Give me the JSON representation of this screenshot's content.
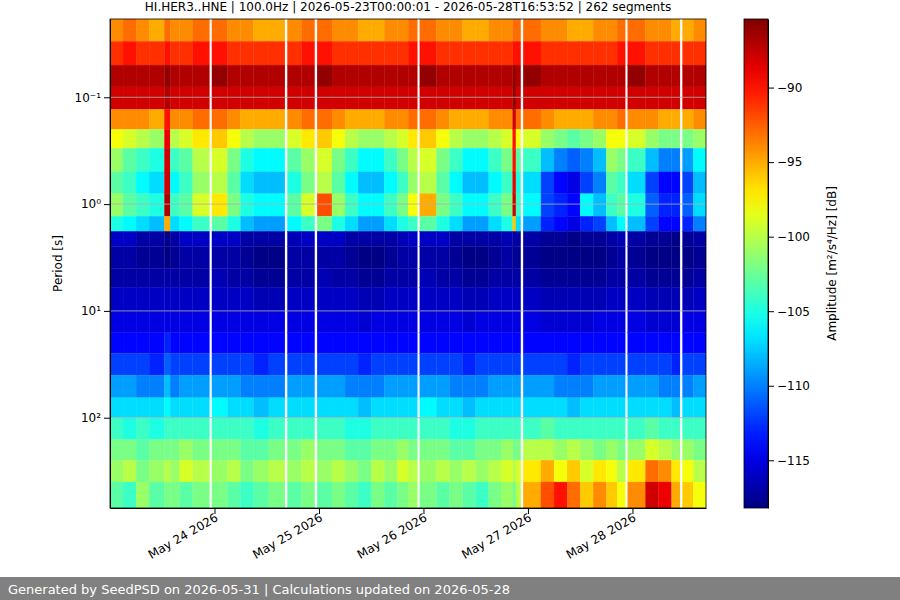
{
  "chart_data": {
    "type": "heatmap",
    "title": "HI.HER3..HNE | 100.0Hz | 2026-05-23T00:00:01 - 2026-05-28T16:53:52 | 262 segments",
    "y_label": "Period [s]",
    "footer": "Generated by SeedPSD on 2026-05-31 | Calculations updated on 2026-05-28",
    "log": "y",
    "grid": true,
    "xlim": [
      "2026-05-23T00:00:00Z",
      "2026-05-28T16:53:52Z"
    ],
    "ylim": [
      0.0185,
      700
    ],
    "xticks": [
      {
        "value": "2026-05-24T00:00:00Z",
        "label": "May 24 2026"
      },
      {
        "value": "2026-05-25T00:00:00Z",
        "label": "May 25 2026"
      },
      {
        "value": "2026-05-26T00:00:00Z",
        "label": "May 26 2026"
      },
      {
        "value": "2026-05-27T00:00:00Z",
        "label": "May 27 2026"
      },
      {
        "value": "2026-05-28T00:00:00Z",
        "label": "May 28 2026"
      }
    ],
    "yticks": [
      {
        "value": 0.1,
        "label": "10⁻¹"
      },
      {
        "value": 1,
        "label": "10⁰"
      },
      {
        "value": 10,
        "label": "10¹"
      },
      {
        "value": 100,
        "label": "10²"
      }
    ],
    "colorbar": {
      "label": "Amplitude [m²/s⁴/Hz] [dB]",
      "range": [
        -118.2,
        -85.4
      ],
      "ticks": [
        {
          "value": -90,
          "label": "−90"
        },
        {
          "value": -95,
          "label": "−95"
        },
        {
          "value": -100,
          "label": "−100"
        },
        {
          "value": -105,
          "label": "−105"
        },
        {
          "value": -110,
          "label": "−110"
        },
        {
          "value": -115,
          "label": "−115"
        }
      ]
    },
    "x_edges": [
      "2026-05-23T00:00:00Z",
      "2026-05-23T03:00:00Z",
      "2026-05-23T06:00:00Z",
      "2026-05-23T09:00:00Z",
      "2026-05-23T12:30:00Z",
      "2026-05-23T13:50:00Z",
      "2026-05-23T16:00:00Z",
      "2026-05-23T19:00:00Z",
      "2026-05-23T22:50:00Z",
      "2026-05-23T23:25:00Z",
      "2026-05-24T03:00:00Z",
      "2026-05-24T06:00:00Z",
      "2026-05-24T09:00:00Z",
      "2026-05-24T12:30:00Z",
      "2026-05-24T16:10:00Z",
      "2026-05-24T16:45:00Z",
      "2026-05-24T20:00:00Z",
      "2026-05-24T23:00:00Z",
      "2026-05-24T23:35:00Z",
      "2026-05-25T03:00:00Z",
      "2026-05-25T06:00:00Z",
      "2026-05-25T09:00:00Z",
      "2026-05-25T12:00:00Z",
      "2026-05-25T15:00:00Z",
      "2026-05-25T18:00:00Z",
      "2026-05-25T20:30:00Z",
      "2026-05-25T22:35:00Z",
      "2026-05-25T23:10:00Z",
      "2026-05-26T03:00:00Z",
      "2026-05-26T06:00:00Z",
      "2026-05-26T09:00:00Z",
      "2026-05-26T12:00:00Z",
      "2026-05-26T15:00:00Z",
      "2026-05-26T18:00:00Z",
      "2026-05-26T20:30:00Z",
      "2026-05-26T21:15:00Z",
      "2026-05-26T22:20:00Z",
      "2026-05-26T22:55:00Z",
      "2026-05-27T03:00:00Z",
      "2026-05-27T06:00:00Z",
      "2026-05-27T09:00:00Z",
      "2026-05-27T12:00:00Z",
      "2026-05-27T15:00:00Z",
      "2026-05-27T18:00:00Z",
      "2026-05-27T20:30:00Z",
      "2026-05-27T22:20:00Z",
      "2026-05-27T22:55:00Z",
      "2026-05-28T03:00:00Z",
      "2026-05-28T06:00:00Z",
      "2026-05-28T09:00:00Z",
      "2026-05-28T10:55:00Z",
      "2026-05-28T11:30:00Z",
      "2026-05-28T14:00:00Z",
      "2026-05-28T16:53:52Z"
    ],
    "y_edges": [
      0.0185,
      0.03,
      0.05,
      0.08,
      0.13,
      0.2,
      0.3,
      0.5,
      0.8,
      1.3,
      1.8,
      2.5,
      4,
      6,
      10,
      16,
      25,
      40,
      65,
      100,
      160,
      250,
      400,
      700
    ],
    "z": [
      [
        -94,
        -91,
        -87,
        -88,
        -94,
        -98,
        -101,
        -103,
        -101,
        -105,
        -116,
        -117,
        -117,
        -116,
        -115,
        -114,
        -112,
        -109,
        -107,
        -104,
        -102,
        -101,
        -103
      ],
      [
        -93,
        -90,
        -87,
        -88,
        -94,
        -99,
        -103,
        -104,
        -103,
        -106,
        -116,
        -117,
        -117,
        -116,
        -115,
        -114,
        -112,
        -109,
        -107,
        -105,
        -102,
        -100,
        -104
      ],
      [
        -94,
        -91,
        -87,
        -88,
        -94,
        -100,
        -104,
        -106,
        -104,
        -107,
        -117,
        -117.5,
        -117,
        -116,
        -115,
        -114,
        -112,
        -110,
        -107,
        -104,
        -103,
        -102,
        -101
      ],
      [
        -95,
        -91,
        -87,
        -88,
        -95,
        -101,
        -105,
        -107,
        -105,
        -108,
        -117,
        -117.5,
        -117,
        -116,
        -115,
        -114,
        -113,
        -110,
        -107,
        -105,
        -102,
        -101,
        -103
      ],
      [
        -93,
        -90,
        -86,
        -87,
        -90,
        -89,
        -88,
        -88,
        -87,
        -95,
        -118,
        -118,
        -117,
        -116,
        -115,
        -113,
        -111,
        -108,
        -106,
        -104,
        -102,
        -100,
        -102
      ],
      [
        -94,
        -91,
        -87,
        -88,
        -94,
        -100,
        -104,
        -106,
        -104,
        -107,
        -117,
        -117.5,
        -117,
        -116,
        -115,
        -114,
        -112,
        -110,
        -107,
        -104,
        -102,
        -101,
        -102
      ],
      [
        -94,
        -91,
        -87,
        -88,
        -94,
        -99,
        -103,
        -104,
        -103,
        -106,
        -116,
        -117,
        -117,
        -116,
        -115,
        -114,
        -112,
        -109,
        -107,
        -104,
        -101,
        -99,
        -103
      ],
      [
        -93,
        -90,
        -87,
        -88,
        -93,
        -97,
        -100,
        -101,
        -99,
        -104,
        -116,
        -117,
        -117,
        -116,
        -115,
        -114,
        -112,
        -109,
        -107,
        -104,
        -102,
        -100,
        -102
      ],
      null,
      [
        -93,
        -90,
        -86,
        -88,
        -93,
        -96,
        -99,
        -100,
        -97,
        -103,
        -116,
        -117,
        -116.5,
        -116,
        -115,
        -114,
        -112,
        -109,
        -106,
        -104,
        -102,
        -101,
        -102
      ],
      [
        -94,
        -91,
        -87,
        -88,
        -94,
        -98,
        -102,
        -103,
        -102,
        -105,
        -116,
        -117,
        -117,
        -116,
        -115,
        -114,
        -112,
        -109,
        -107,
        -104,
        -102,
        -100,
        -103
      ],
      [
        -94,
        -91,
        -87,
        -88,
        -95,
        -100,
        -105,
        -107,
        -105,
        -108,
        -117,
        -117.5,
        -117,
        -116,
        -115,
        -114,
        -112,
        -110,
        -107,
        -104,
        -103,
        -102,
        -104
      ],
      [
        -95,
        -91,
        -87,
        -88,
        -95,
        -101,
        -106,
        -108,
        -106,
        -109,
        -117,
        -118,
        -117.5,
        -116.5,
        -115,
        -114,
        -113,
        -110,
        -108,
        -105,
        -103,
        -101,
        -103
      ],
      [
        -95,
        -91,
        -87,
        -88,
        -95,
        -101,
        -106,
        -108,
        -106,
        -109,
        -117,
        -118,
        -117.5,
        -116.5,
        -115,
        -114,
        -112,
        -110,
        -107,
        -104,
        -102,
        -100,
        -102
      ],
      null,
      [
        -94,
        -91,
        -87,
        -88,
        -94,
        -99,
        -103,
        -105,
        -103,
        -106,
        -116.5,
        -117,
        -117,
        -116,
        -115,
        -114,
        -112,
        -109,
        -107,
        -104,
        -102,
        -101,
        -103
      ],
      [
        -93,
        -90,
        -87,
        -88,
        -93,
        -97,
        -101,
        -102,
        -99,
        -104,
        -116,
        -117,
        -117,
        -116,
        -115,
        -114,
        -112,
        -109,
        -107,
        -104,
        -101,
        -100,
        -102
      ],
      null,
      [
        -93,
        -90,
        -86,
        -88,
        -93,
        -96,
        -99,
        -100,
        -92,
        -102,
        -116,
        -117,
        -116.5,
        -116,
        -115,
        -114,
        -112,
        -109,
        -107,
        -104,
        -102,
        -101,
        -103
      ],
      [
        -94,
        -91,
        -87,
        -88,
        -94,
        -98,
        -102,
        -103,
        -101,
        -105,
        -116,
        -117,
        -117,
        -116,
        -115,
        -114,
        -112,
        -109,
        -107,
        -104,
        -102,
        -100,
        -102
      ],
      [
        -94,
        -91,
        -87,
        -88,
        -95,
        -100,
        -104,
        -106,
        -104,
        -107,
        -117,
        -117.5,
        -117,
        -116,
        -115,
        -114,
        -112,
        -110,
        -107,
        -105,
        -103,
        -101,
        -103
      ],
      [
        -95,
        -91,
        -87,
        -88,
        -95,
        -101,
        -106,
        -108,
        -106,
        -109,
        -117,
        -118,
        -117.5,
        -116.5,
        -115.5,
        -114,
        -113,
        -110,
        -108,
        -105,
        -103,
        -102,
        -104
      ],
      [
        -95,
        -91,
        -87,
        -88,
        -95,
        -101,
        -106,
        -108,
        -106,
        -109,
        -117,
        -118,
        -117.5,
        -116.5,
        -115,
        -114,
        -112,
        -110,
        -107,
        -104,
        -102,
        -100,
        -102
      ],
      [
        -94,
        -91,
        -87,
        -88,
        -94,
        -100,
        -104,
        -106,
        -104,
        -107,
        -117,
        -117.5,
        -117,
        -116,
        -115,
        -114,
        -112,
        -109,
        -107,
        -104,
        -102,
        -101,
        -103
      ],
      [
        -94,
        -91,
        -87,
        -88,
        -94,
        -99,
        -102,
        -104,
        -102,
        -105,
        -116.5,
        -117,
        -117,
        -116,
        -115,
        -114,
        -112,
        -109,
        -107,
        -104,
        -101,
        -99,
        -102
      ],
      [
        -93,
        -90,
        -87,
        -88,
        -93,
        -97,
        -100,
        -101,
        -98,
        -104,
        -116,
        -117,
        -117,
        -116,
        -115,
        -114,
        -112,
        -109,
        -107,
        -104,
        -102,
        -100,
        -101
      ],
      null,
      [
        -93,
        -90,
        -86,
        -88,
        -93,
        -96,
        -99,
        -100,
        -95,
        -103,
        -116,
        -117,
        -116.5,
        -116,
        -115,
        -114,
        -112,
        -109,
        -106,
        -104,
        -102,
        -101,
        -102
      ],
      [
        -94,
        -91,
        -87,
        -88,
        -94,
        -98,
        -102,
        -103,
        -102,
        -105,
        -116,
        -117,
        -117,
        -116,
        -115,
        -114,
        -112,
        -109,
        -107,
        -104,
        -102,
        -100,
        -103
      ],
      [
        -94,
        -91,
        -87,
        -88,
        -95,
        -100,
        -104,
        -106,
        -104,
        -107,
        -117,
        -117.5,
        -117,
        -116,
        -115,
        -114,
        -112,
        -110,
        -107,
        -105,
        -103,
        -101,
        -102
      ],
      [
        -95,
        -91,
        -87,
        -88,
        -95,
        -101,
        -106,
        -108,
        -106,
        -109,
        -117,
        -118,
        -117.5,
        -116.5,
        -115.5,
        -114,
        -113,
        -110,
        -108,
        -105,
        -103,
        -100,
        -103
      ],
      [
        -95,
        -91,
        -87,
        -88,
        -95,
        -101,
        -106,
        -108,
        -106,
        -109,
        -117,
        -118,
        -117.5,
        -116.5,
        -115,
        -114,
        -112,
        -110,
        -107,
        -104,
        -102,
        -101,
        -104
      ],
      [
        -94,
        -91,
        -87,
        -88,
        -94,
        -100,
        -104,
        -106,
        -104,
        -107,
        -117,
        -117.5,
        -117,
        -116,
        -115,
        -114,
        -112,
        -109,
        -107,
        -104,
        -102,
        -100,
        -102
      ],
      [
        -94,
        -91,
        -87,
        -88,
        -94,
        -99,
        -102,
        -104,
        -102,
        -105,
        -116.5,
        -117,
        -117,
        -116,
        -115,
        -114,
        -112,
        -109,
        -107,
        -104,
        -101,
        -99,
        -101
      ],
      [
        -93,
        -90,
        -86,
        -86,
        -88,
        -90,
        -90,
        -89,
        -88,
        -96,
        -117,
        -117.5,
        -117,
        -116,
        -115,
        -114,
        -112,
        -109,
        -107,
        -104,
        -102,
        -100,
        -102
      ],
      [
        -93,
        -90,
        -87,
        -88,
        -93,
        -98,
        -103,
        -105,
        -104,
        -107,
        -117,
        -117.5,
        -117,
        -116,
        -115,
        -114,
        -112,
        -109,
        -107,
        -104,
        -102,
        -99,
        -100
      ],
      null,
      [
        -93,
        -90,
        -86,
        -88,
        -93,
        -99,
        -104,
        -107,
        -106,
        -109,
        -117,
        -117.5,
        -117,
        -116,
        -115,
        -114,
        -112,
        -109,
        -107,
        -104,
        -100,
        -97,
        -95
      ],
      [
        -94,
        -91,
        -87,
        -88,
        -94,
        -101,
        -108,
        -112,
        -112,
        -113,
        -117.5,
        -118,
        -117.5,
        -116.5,
        -115.5,
        -114,
        -112,
        -109,
        -107,
        -103,
        -100,
        -95,
        -92
      ],
      [
        -94,
        -91,
        -87,
        -88,
        -95,
        -102,
        -110,
        -114,
        -113,
        -114,
        -117.5,
        -118,
        -117.5,
        -116.5,
        -115.5,
        -114,
        -112,
        -110,
        -107,
        -104,
        -101,
        -98,
        -90
      ],
      [
        -95,
        -91,
        -87,
        -88,
        -95,
        -103,
        -111,
        -115,
        -114,
        -115,
        -118,
        -118,
        -117.5,
        -116.5,
        -115.5,
        -114,
        -113,
        -110,
        -108,
        -104,
        -100,
        -96,
        -93
      ],
      [
        -95,
        -91,
        -87,
        -88,
        -95,
        -102,
        -110,
        -112,
        -106,
        -113,
        -117.5,
        -118,
        -117.5,
        -116.5,
        -115.5,
        -114,
        -112,
        -110,
        -107,
        -104,
        -101,
        -99,
        -96
      ],
      [
        -94,
        -91,
        -87,
        -88,
        -94,
        -101,
        -108,
        -110,
        -108,
        -112,
        -117.5,
        -118,
        -117.5,
        -116.5,
        -115,
        -114,
        -112,
        -109,
        -107,
        -104,
        -102,
        -97,
        -94
      ],
      [
        -94,
        -91,
        -87,
        -88,
        -94,
        -98,
        -101,
        -103,
        -104,
        -108,
        -117,
        -117.5,
        -117,
        -116,
        -115,
        -114,
        -112,
        -109,
        -107,
        -104,
        -101,
        -98,
        -96
      ],
      [
        -93,
        -90,
        -87,
        -88,
        -93,
        -98,
        -102,
        -104,
        -103,
        -106,
        -116.5,
        -117,
        -117,
        -116,
        -115,
        -114,
        -112,
        -109,
        -107,
        -104,
        -102,
        -100,
        -98
      ],
      null,
      [
        -93,
        -90,
        -86,
        -88,
        -94,
        -99,
        -104,
        -107,
        -105,
        -108,
        -117,
        -117.5,
        -117,
        -116,
        -115,
        -114,
        -112,
        -109,
        -107,
        -104,
        -101,
        -97,
        -94
      ],
      [
        -94,
        -91,
        -87,
        -88,
        -94,
        -101,
        -108,
        -112,
        -111,
        -112,
        -117.5,
        -118,
        -117.5,
        -116.5,
        -115.5,
        -114,
        -112,
        -109,
        -107,
        -103,
        -99,
        -93,
        -88
      ],
      [
        -94,
        -91,
        -87,
        -88,
        -95,
        -102,
        -110,
        -114,
        -113,
        -114,
        -117.5,
        -118,
        -117.5,
        -116.5,
        -115.5,
        -114,
        -112,
        -110,
        -107,
        -104,
        -100,
        -94,
        -89
      ],
      [
        -95,
        -91,
        -87,
        -88,
        -95,
        -102,
        -110,
        -114,
        -113,
        -114,
        -118,
        -118,
        -117.5,
        -116.5,
        -115.5,
        -114,
        -113,
        -110,
        -108,
        -104,
        -101,
        -97,
        -95
      ],
      null,
      [
        -95,
        -91,
        -87,
        -88,
        -95,
        -102,
        -109,
        -112,
        -111,
        -113,
        -117.5,
        -118,
        -117.5,
        -116.5,
        -115,
        -114,
        -112,
        -110,
        -107,
        -104,
        -101,
        -98,
        -96
      ],
      [
        -94,
        -91,
        -87,
        -88,
        -94,
        -101,
        -106,
        -108,
        -107,
        -110,
        -117,
        -117.5,
        -117,
        -116,
        -115,
        -114,
        -112,
        -109,
        -107,
        -104,
        -102,
        -100,
        -98
      ]
    ]
  }
}
